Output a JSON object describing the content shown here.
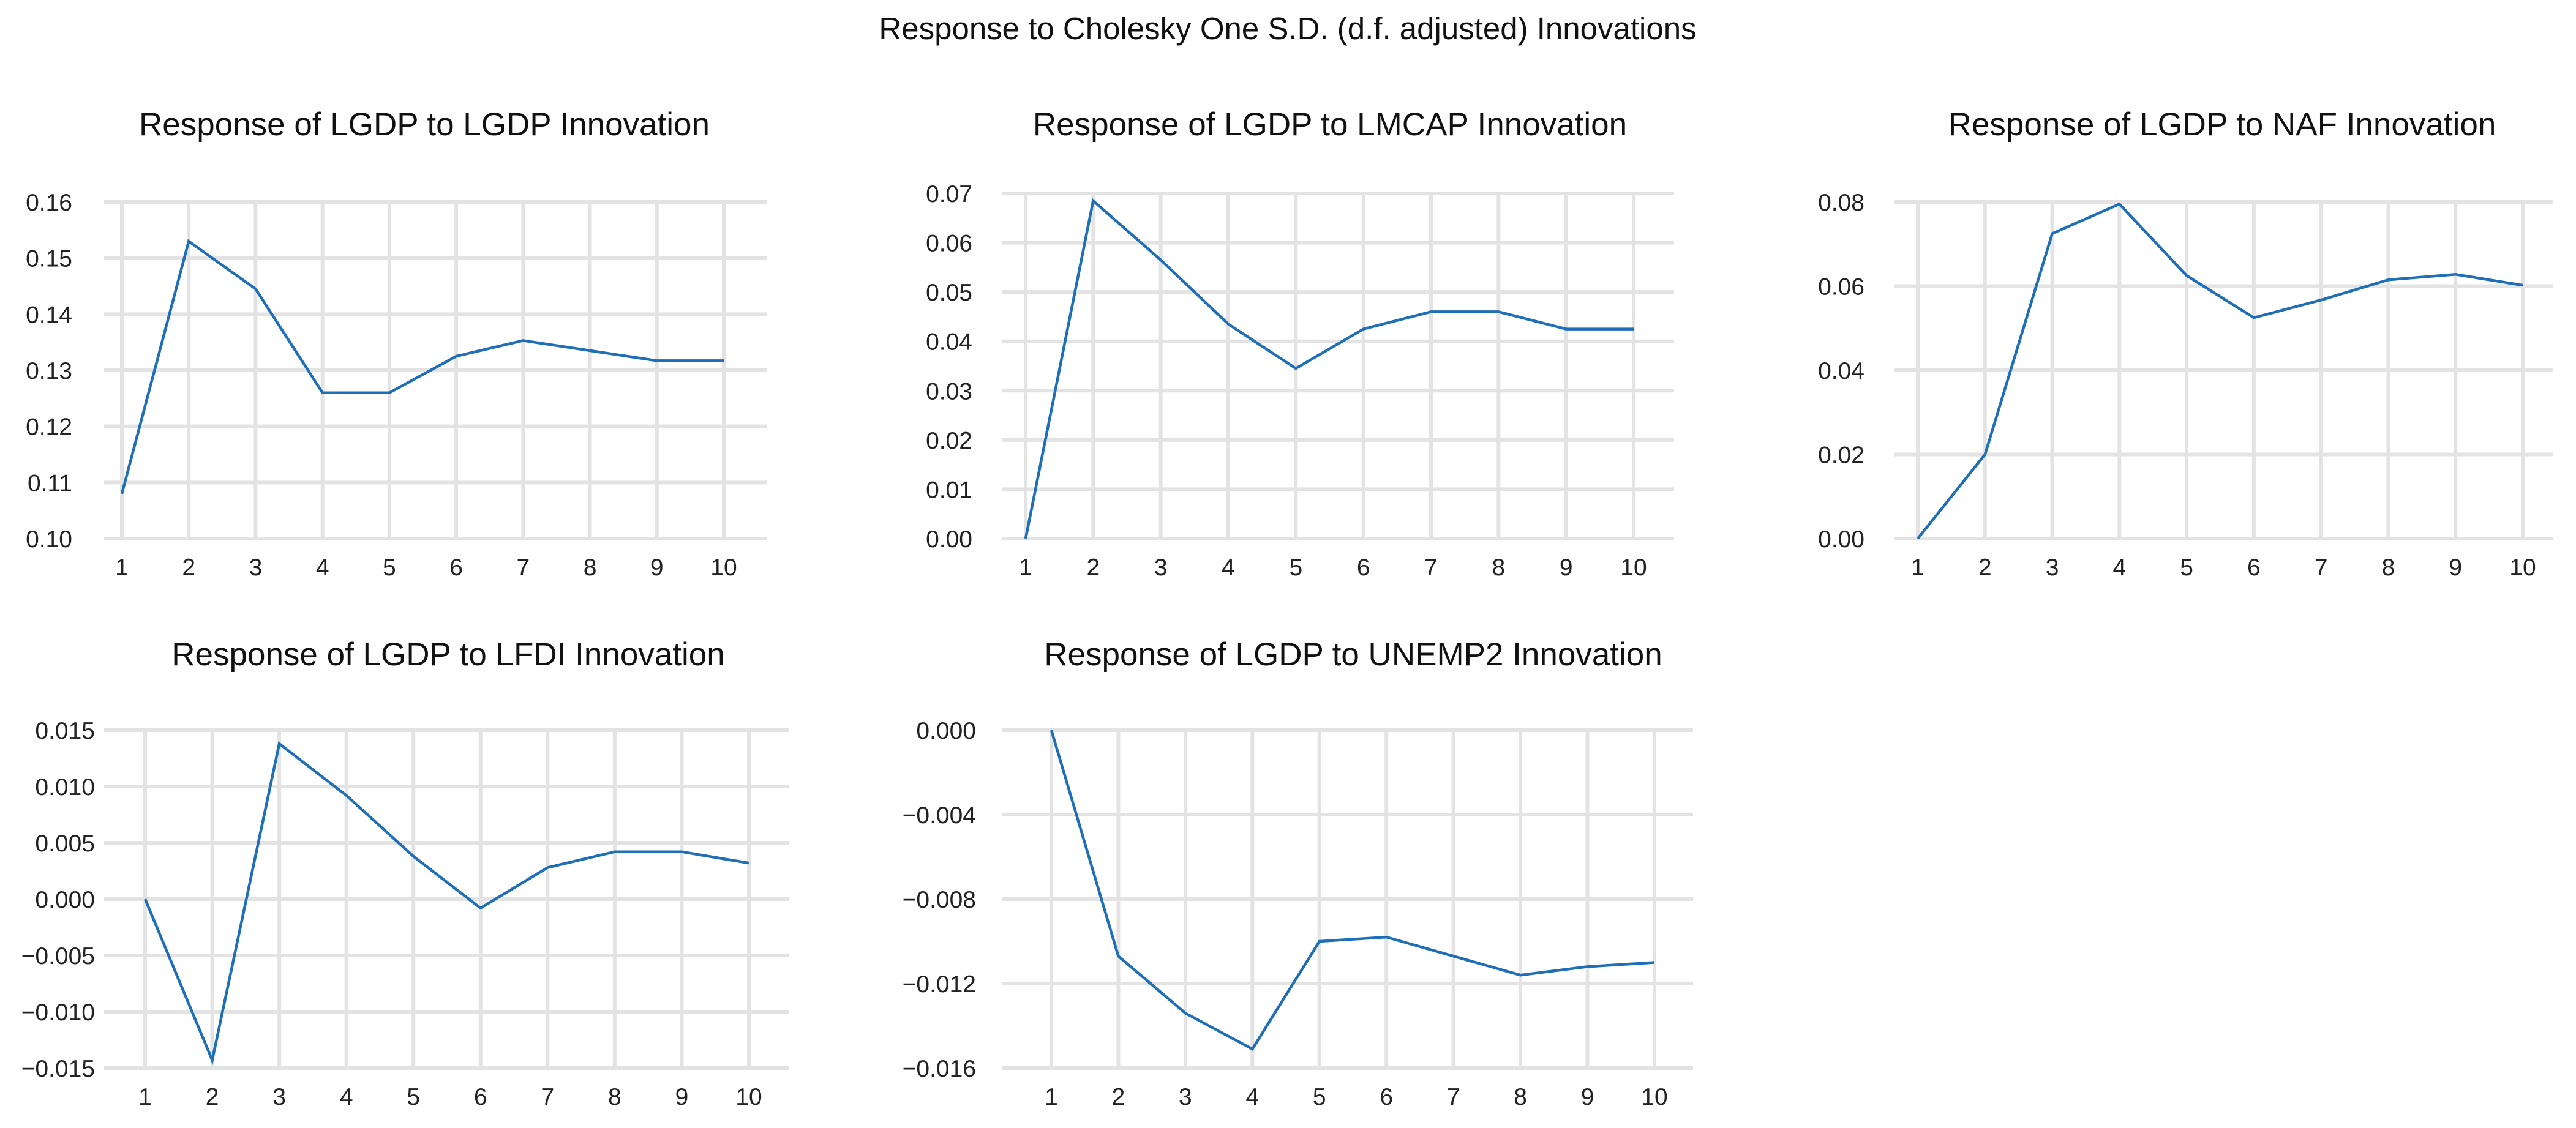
{
  "title": "Response to Cholesky One S.D. (d.f. adjusted) Innovations",
  "colors": {
    "line": "#1f6fb8",
    "grid": "#e3e3e3",
    "background": "#ffffff"
  },
  "chart_data": [
    {
      "type": "line",
      "title": "Response of LGDP to LGDP Innovation",
      "xlabel": "",
      "ylabel": "",
      "x": [
        1,
        2,
        3,
        4,
        5,
        6,
        7,
        8,
        9,
        10
      ],
      "xtick_labels": [
        "1",
        "2",
        "3",
        "4",
        "5",
        "6",
        "7",
        "8",
        "9",
        "10"
      ],
      "series": [
        {
          "name": "LGDP",
          "values": [
            0.108,
            0.153,
            0.1445,
            0.126,
            0.126,
            0.1325,
            0.1353,
            0.1335,
            0.1317,
            0.1317
          ]
        }
      ],
      "ylim": [
        0.1,
        0.16
      ],
      "yticks": [
        0.1,
        0.11,
        0.12,
        0.13,
        0.14,
        0.15,
        0.16
      ],
      "ytick_labels": [
        "0.10",
        "0.11",
        "0.12",
        "0.13",
        "0.14",
        "0.15",
        "0.16"
      ],
      "grid": true
    },
    {
      "type": "line",
      "title": "Response of LGDP to LMCAP Innovation",
      "xlabel": "",
      "ylabel": "",
      "x": [
        1,
        2,
        3,
        4,
        5,
        6,
        7,
        8,
        9,
        10
      ],
      "xtick_labels": [
        "1",
        "2",
        "3",
        "4",
        "5",
        "6",
        "7",
        "8",
        "9",
        "10"
      ],
      "series": [
        {
          "name": "LMCAP",
          "values": [
            0.0,
            0.0685,
            0.0565,
            0.0435,
            0.0345,
            0.0425,
            0.046,
            0.046,
            0.0425,
            0.0425
          ]
        }
      ],
      "ylim": [
        0.0,
        0.07
      ],
      "yticks": [
        0.0,
        0.01,
        0.02,
        0.03,
        0.04,
        0.05,
        0.06,
        0.07
      ],
      "ytick_labels": [
        "0.00",
        "0.01",
        "0.02",
        "0.03",
        "0.04",
        "0.05",
        "0.06",
        "0.07"
      ],
      "grid": true
    },
    {
      "type": "line",
      "title": "Response of LGDP to NAF Innovation",
      "xlabel": "",
      "ylabel": "",
      "x": [
        1,
        2,
        3,
        4,
        5,
        6,
        7,
        8,
        9,
        10
      ],
      "xtick_labels": [
        "1",
        "2",
        "3",
        "4",
        "5",
        "6",
        "7",
        "8",
        "9",
        "10"
      ],
      "series": [
        {
          "name": "NAF",
          "values": [
            0.0,
            0.02,
            0.0725,
            0.0795,
            0.0625,
            0.0525,
            0.0567,
            0.0615,
            0.0628,
            0.0602
          ]
        }
      ],
      "ylim": [
        0.0,
        0.08
      ],
      "yticks": [
        0.0,
        0.02,
        0.04,
        0.06,
        0.08
      ],
      "ytick_labels": [
        "0.00",
        "0.02",
        "0.04",
        "0.06",
        "0.08"
      ],
      "grid": true
    },
    {
      "type": "line",
      "title": "Response of LGDP to LFDI Innovation",
      "xlabel": "",
      "ylabel": "",
      "x": [
        1,
        2,
        3,
        4,
        5,
        6,
        7,
        8,
        9,
        10
      ],
      "xtick_labels": [
        "1",
        "2",
        "3",
        "4",
        "5",
        "6",
        "7",
        "8",
        "9",
        "10"
      ],
      "series": [
        {
          "name": "LFDI",
          "values": [
            0.0,
            -0.0143,
            0.0138,
            0.0092,
            0.0038,
            -0.0008,
            0.0028,
            0.0042,
            0.0042,
            0.0032
          ]
        }
      ],
      "ylim": [
        -0.015,
        0.015
      ],
      "yticks": [
        -0.015,
        -0.01,
        -0.005,
        0.0,
        0.005,
        0.01,
        0.015
      ],
      "ytick_labels": [
        "−0.015",
        "−0.010",
        "−0.005",
        "0.000",
        "0.005",
        "0.010",
        "0.015"
      ],
      "grid": true
    },
    {
      "type": "line",
      "title": "Response of LGDP to UNEMP2 Innovation",
      "xlabel": "",
      "ylabel": "",
      "x": [
        1,
        2,
        3,
        4,
        5,
        6,
        7,
        8,
        9,
        10
      ],
      "xtick_labels": [
        "1",
        "2",
        "3",
        "4",
        "5",
        "6",
        "7",
        "8",
        "9",
        "10"
      ],
      "series": [
        {
          "name": "UNEMP2",
          "values": [
            0.0,
            -0.0107,
            -0.0134,
            -0.0151,
            -0.01,
            -0.0098,
            -0.0107,
            -0.0116,
            -0.0112,
            -0.011
          ]
        }
      ],
      "ylim": [
        -0.016,
        0.0
      ],
      "yticks": [
        -0.016,
        -0.012,
        -0.008,
        -0.004,
        0.0
      ],
      "ytick_labels": [
        "−0.016",
        "−0.012",
        "−0.008",
        "−0.004",
        "0.000"
      ],
      "grid": true
    }
  ]
}
